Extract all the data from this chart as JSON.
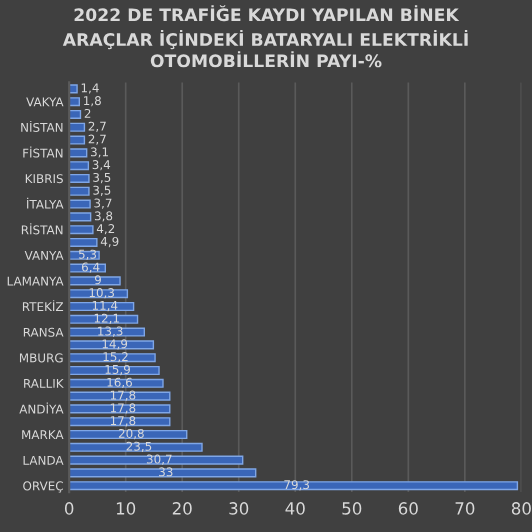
{
  "chart_data": {
    "type": "bar",
    "orientation": "horizontal",
    "title": "2022 DE TRAFİĞE KAYDI YAPILAN BİNEK\nARAÇLAR İÇİNDEKİ BATARYALI ELEKTRİKLİ\nOTOMOBİLLERİN PAYI-%",
    "categories": [
      null,
      "VAKYA",
      null,
      "NİSTAN",
      null,
      "FİSTAN",
      null,
      "KIBRIS",
      null,
      "İTALYA",
      null,
      "RİSTAN",
      null,
      "VANYA",
      null,
      "LAMANYA",
      null,
      "RTEKİZ",
      null,
      "RANSA",
      null,
      "MBURG",
      null,
      "RALLIK",
      null,
      "ANDİYA",
      null,
      "MARKA",
      null,
      "LANDA",
      null,
      "ORVEÇ"
    ],
    "values": [
      1.4,
      1.8,
      2,
      2.7,
      2.7,
      3.1,
      3.4,
      3.5,
      3.5,
      3.7,
      3.8,
      4.2,
      4.9,
      5.3,
      6.4,
      9,
      10.3,
      11.4,
      12.1,
      13.3,
      14.9,
      15.2,
      15.9,
      16.6,
      17.8,
      17.8,
      17.8,
      20.8,
      23.5,
      30.7,
      33,
      79.3
    ],
    "value_labels": [
      "1,4",
      "1,8",
      "2",
      "2,7",
      "2,7",
      "3,1",
      "3,4",
      "3,5",
      "3,5",
      "3,7",
      "3,8",
      "4,2",
      "4,9",
      "5,3",
      "6,4",
      "9",
      "10,3",
      "11,4",
      "12,1",
      "13,3",
      "14,9",
      "15,2",
      "15,9",
      "16,6",
      "17,8",
      "17,8",
      "17,8",
      "20,8",
      "23,5",
      "30,7",
      "33",
      "79,3"
    ],
    "color": "#3a66b8",
    "xlim": [
      0,
      80
    ],
    "xticks": [
      0,
      10,
      20,
      30,
      40,
      50,
      60,
      70,
      80
    ],
    "grid": "x",
    "legend": false
  }
}
